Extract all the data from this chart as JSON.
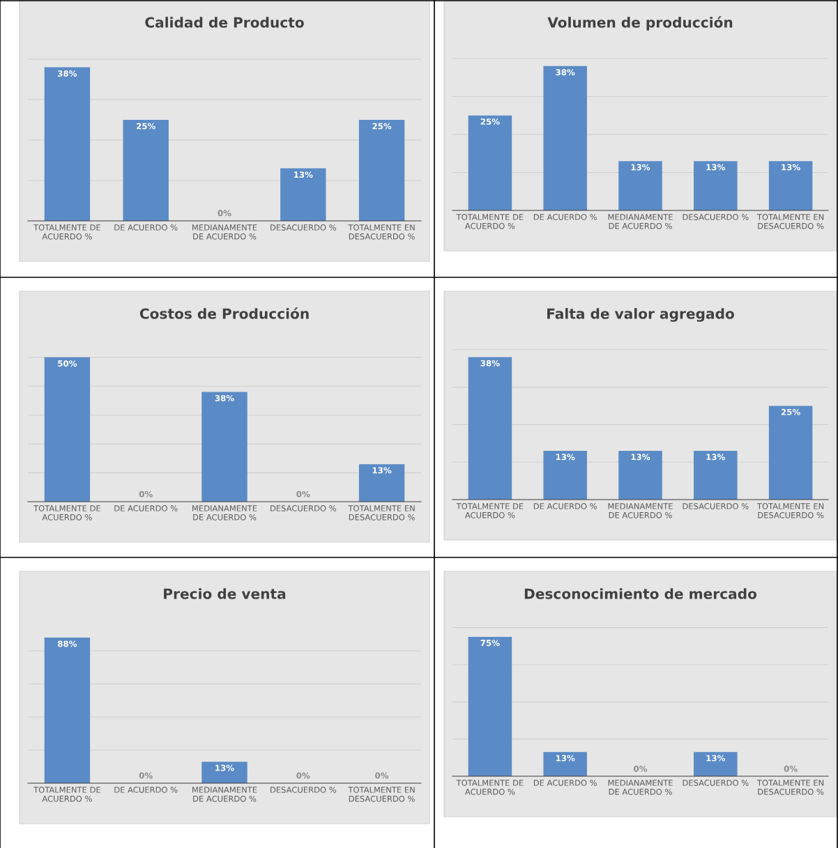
{
  "chart_data": [
    {
      "type": "bar",
      "title": "Calidad de Producto",
      "categories": [
        "TOTALMENTE DE ACUERDO %",
        "DE ACUERDO %",
        "MEDIANAMENTE DE ACUERDO %",
        "DESACUERDO %",
        "TOTALMENTE EN DESACUERDO %"
      ],
      "values": [
        38,
        25,
        0,
        13,
        25
      ],
      "value_labels": [
        "38%",
        "25%",
        "0%",
        "13%",
        "25%"
      ],
      "color": "#5b8bc6",
      "grid": "y",
      "tick_labels": "x",
      "legend": false
    },
    {
      "type": "bar",
      "title": "Volumen de producción",
      "categories": [
        "TOTALMENTE DE ACUERDO %",
        "DE ACUERDO %",
        "MEDIANAMENTE DE ACUERDO %",
        "DESACUERDO %",
        "TOTALMENTE EN DESACUERDO %"
      ],
      "values": [
        25,
        38,
        13,
        13,
        13
      ],
      "value_labels": [
        "25%",
        "38%",
        "13%",
        "13%",
        "13%"
      ],
      "color": "#5b8bc6",
      "grid": "y",
      "tick_labels": "x",
      "legend": false
    },
    {
      "type": "bar",
      "title": "Costos de Producción",
      "categories": [
        "TOTALMENTE DE ACUERDO %",
        "DE ACUERDO %",
        "MEDIANAMENTE DE ACUERDO %",
        "DESACUERDO %",
        "TOTALMENTE EN DESACUERDO %"
      ],
      "values": [
        50,
        0,
        38,
        0,
        13
      ],
      "value_labels": [
        "50%",
        "0%",
        "38%",
        "0%",
        "13%"
      ],
      "color": "#5b8bc6",
      "grid": "y",
      "tick_labels": "x",
      "legend": false
    },
    {
      "type": "bar",
      "title": "Falta de valor agregado",
      "categories": [
        "TOTALMENTE DE ACUERDO %",
        "DE ACUERDO %",
        "MEDIANAMENTE DE ACUERDO %",
        "DESACUERDO %",
        "TOTALMENTE EN DESACUERDO %"
      ],
      "values": [
        38,
        13,
        13,
        13,
        25
      ],
      "value_labels": [
        "38%",
        "13%",
        "13%",
        "13%",
        "25%"
      ],
      "color": "#5b8bc6",
      "grid": "y",
      "tick_labels": "x",
      "legend": false
    },
    {
      "type": "bar",
      "title": "Precio de venta",
      "categories": [
        "TOTALMENTE DE ACUERDO %",
        "DE ACUERDO %",
        "MEDIANAMENTE DE ACUERDO %",
        "DESACUERDO %",
        "TOTALMENTE EN DESACUERDO %"
      ],
      "values": [
        88,
        0,
        13,
        0,
        0
      ],
      "value_labels": [
        "88%",
        "0%",
        "13%",
        "0%",
        "0%"
      ],
      "color": "#5b8bc6",
      "grid": "y",
      "tick_labels": "x",
      "legend": false
    },
    {
      "type": "bar",
      "title": "Desconocimiento de mercado",
      "categories": [
        "TOTALMENTE DE ACUERDO %",
        "DE ACUERDO %",
        "MEDIANAMENTE DE ACUERDO %",
        "DESACUERDO %",
        "TOTALMENTE EN DESACUERDO %"
      ],
      "values": [
        75,
        13,
        0,
        13,
        0
      ],
      "value_labels": [
        "75%",
        "13%",
        "0%",
        "13%",
        "0%"
      ],
      "color": "#5b8bc6",
      "grid": "y",
      "tick_labels": "x",
      "legend": false
    }
  ]
}
